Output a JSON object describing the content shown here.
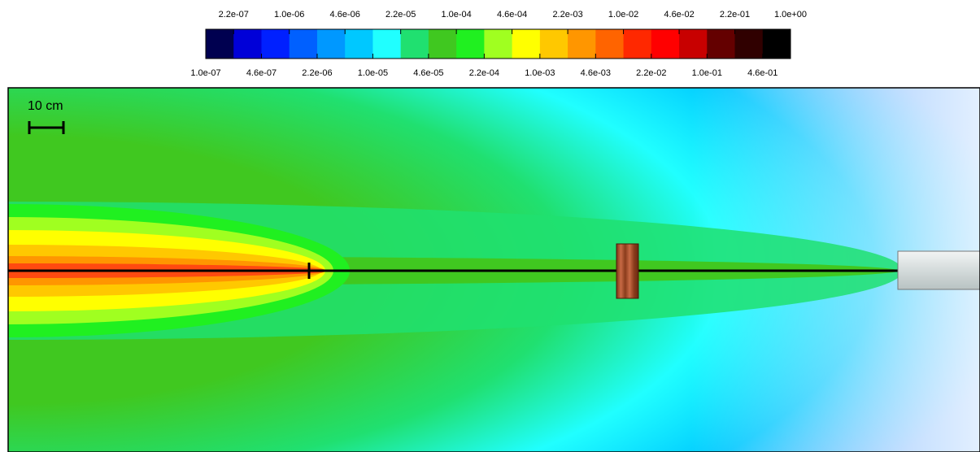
{
  "colorbar": {
    "top_labels": [
      "2.2e-07",
      "1.0e-06",
      "4.6e-06",
      "2.2e-05",
      "1.0e-04",
      "4.6e-04",
      "2.2e-03",
      "1.0e-02",
      "4.6e-02",
      "2.2e-01",
      "1.0e+00"
    ],
    "bottom_labels": [
      "1.0e-07",
      "4.6e-07",
      "2.2e-06",
      "1.0e-05",
      "4.6e-05",
      "2.2e-04",
      "1.0e-03",
      "4.6e-03",
      "2.2e-02",
      "1.0e-01",
      "4.6e-01"
    ],
    "colors": [
      "#000050",
      "#0000d8",
      "#0020ff",
      "#0060ff",
      "#0098ff",
      "#00c8ff",
      "#20ffff",
      "#20e070",
      "#40c820",
      "#20f020",
      "#a0ff20",
      "#ffff00",
      "#ffc800",
      "#ff9600",
      "#ff6400",
      "#ff2800",
      "#ff0000",
      "#c80000",
      "#640000",
      "#300000",
      "#000000"
    ]
  },
  "scale_bar": {
    "label": "10 cm"
  }
}
